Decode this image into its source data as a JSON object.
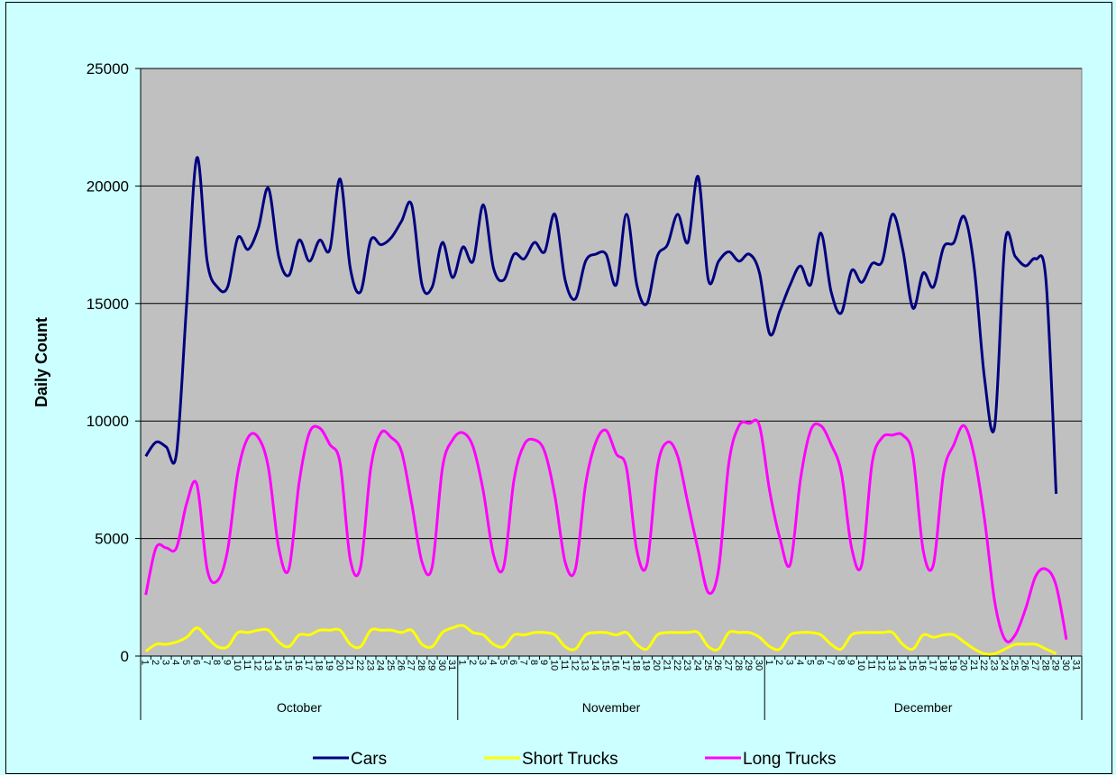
{
  "chart_data": {
    "type": "line",
    "title": "",
    "xlabel": "",
    "ylabel": "Daily Count",
    "ylim": [
      0,
      25000
    ],
    "yticks": [
      0,
      5000,
      10000,
      15000,
      20000,
      25000
    ],
    "grid": true,
    "legend_position": "bottom",
    "plot_background": "#c0c0c0",
    "page_background": "#ccffff",
    "months": [
      {
        "name": "October",
        "days": 31
      },
      {
        "name": "November",
        "days": 30
      },
      {
        "name": "December",
        "days": 31
      }
    ],
    "series": [
      {
        "name": "Cars",
        "color": "#000080",
        "values": [
          8500,
          9100,
          8900,
          8600,
          15000,
          21200,
          16800,
          15700,
          15700,
          17800,
          17300,
          18200,
          19900,
          17000,
          16200,
          17700,
          16800,
          17700,
          17300,
          20300,
          16500,
          15500,
          17700,
          17500,
          17800,
          18500,
          19200,
          15800,
          15700,
          17600,
          16100,
          17400,
          16800,
          19200,
          16500,
          16000,
          17100,
          16900,
          17600,
          17200,
          18800,
          16000,
          15200,
          16800,
          17100,
          17100,
          15800,
          18800,
          15800,
          15000,
          17000,
          17500,
          18800,
          17600,
          20400,
          16000,
          16800,
          17200,
          16800,
          17100,
          16300,
          13700,
          14700,
          15800,
          16600,
          15800,
          18000,
          15500,
          14600,
          16400,
          15900,
          16700,
          16800,
          18800,
          17300,
          14800,
          16300,
          15700,
          17400,
          17600,
          18700,
          16500,
          11800,
          9800,
          17600,
          17000,
          16600,
          16900,
          16000,
          6900
        ]
      },
      {
        "name": "Short Trucks",
        "color": "#ffff00",
        "values": [
          200,
          500,
          500,
          600,
          800,
          1200,
          800,
          400,
          400,
          1000,
          1000,
          1100,
          1100,
          600,
          400,
          900,
          900,
          1100,
          1100,
          1100,
          500,
          400,
          1100,
          1100,
          1100,
          1000,
          1100,
          500,
          400,
          1000,
          1200,
          1300,
          1000,
          900,
          500,
          400,
          900,
          900,
          1000,
          1000,
          900,
          400,
          300,
          900,
          1000,
          1000,
          900,
          1000,
          500,
          300,
          900,
          1000,
          1000,
          1000,
          1000,
          400,
          300,
          1000,
          1000,
          1000,
          800,
          400,
          300,
          900,
          1000,
          1000,
          900,
          500,
          300,
          900,
          1000,
          1000,
          1000,
          1000,
          500,
          300,
          900,
          800,
          900,
          900,
          600,
          300,
          100,
          100,
          300,
          500,
          500,
          500,
          300,
          100
        ]
      },
      {
        "name": "Long Trucks",
        "color": "#ff00ff",
        "values": [
          2600,
          4600,
          4600,
          4600,
          6500,
          7300,
          3700,
          3200,
          4500,
          7800,
          9300,
          9300,
          8000,
          4600,
          3700,
          7400,
          9500,
          9700,
          9000,
          8200,
          4100,
          3800,
          8000,
          9500,
          9300,
          8700,
          6500,
          4000,
          3800,
          8000,
          9200,
          9500,
          8900,
          7000,
          4300,
          3800,
          7500,
          9000,
          9200,
          8700,
          6800,
          4000,
          3700,
          7300,
          9100,
          9600,
          8600,
          8000,
          4500,
          3900,
          8000,
          9100,
          8500,
          6500,
          4500,
          2700,
          3700,
          8200,
          9800,
          9900,
          9800,
          7000,
          5000,
          3900,
          7500,
          9600,
          9800,
          9000,
          7800,
          4600,
          3900,
          8200,
          9300,
          9400,
          9400,
          8500,
          4500,
          3900,
          7800,
          9000,
          9800,
          8500,
          5800,
          2300,
          700,
          900,
          2000,
          3400,
          3700,
          3000,
          700
        ]
      }
    ]
  }
}
